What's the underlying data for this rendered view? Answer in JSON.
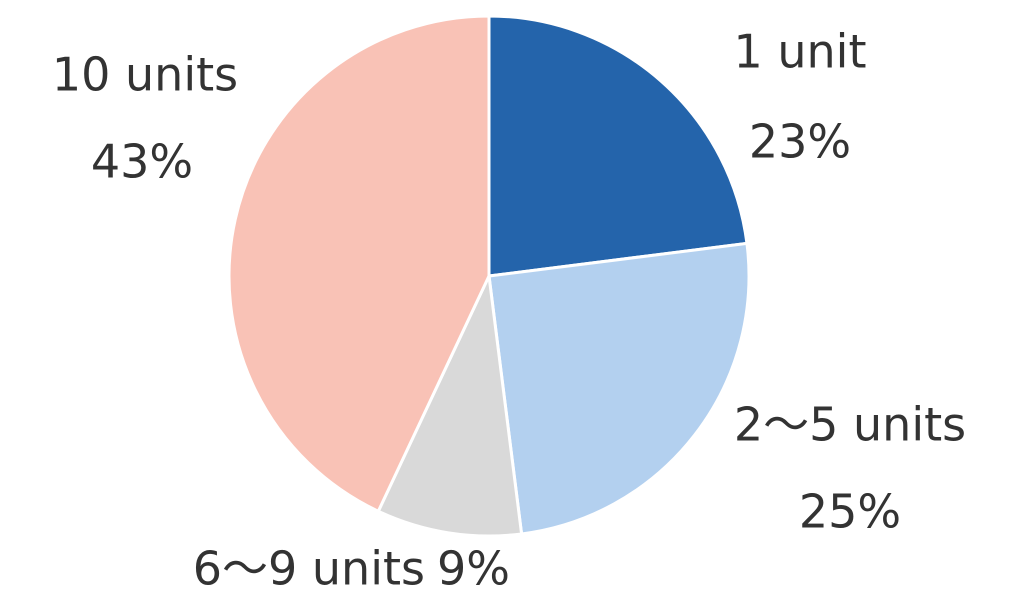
{
  "chart_data": {
    "type": "pie",
    "categories": [
      "1 unit",
      "2〜5 units",
      "6〜9 units",
      "10 units"
    ],
    "values": [
      23,
      25,
      9,
      43
    ],
    "value_labels": [
      "23%",
      "25%",
      "9%",
      "43%"
    ],
    "colors": [
      "#2464ab",
      "#b3d0ef",
      "#d9d9d9",
      "#f9c2b6"
    ]
  }
}
